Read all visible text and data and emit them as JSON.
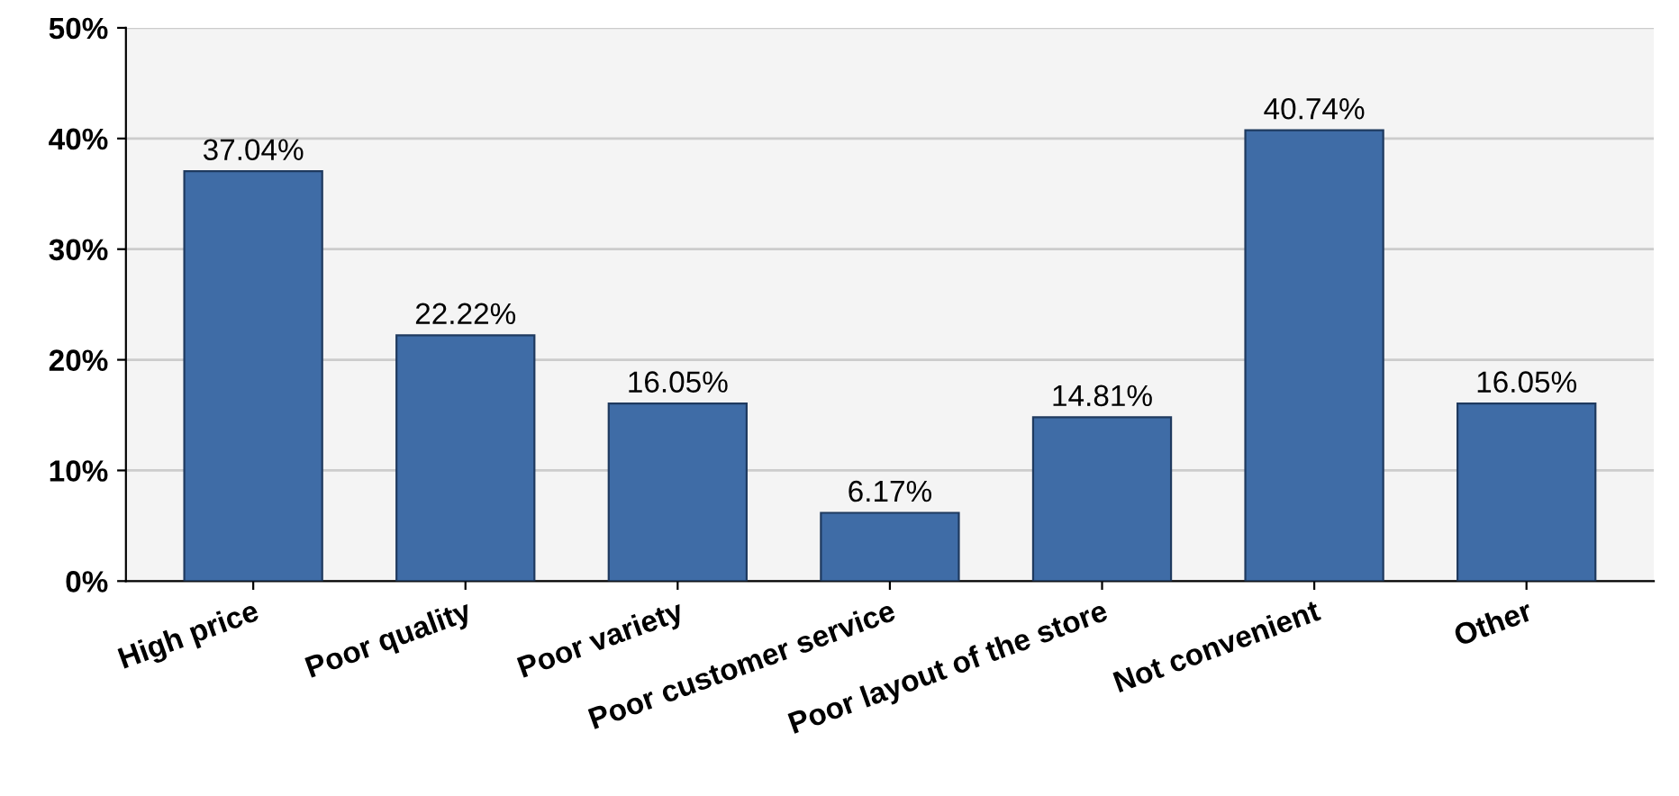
{
  "chart_data": {
    "type": "bar",
    "categories": [
      "High price",
      "Poor quality",
      "Poor variety",
      "Poor customer service",
      "Poor layout of the store",
      "Not convenient",
      "Other"
    ],
    "values": [
      37.04,
      22.22,
      16.05,
      6.17,
      14.81,
      40.74,
      16.05
    ],
    "value_labels": [
      "37.04%",
      "22.22%",
      "16.05%",
      "6.17%",
      "14.81%",
      "40.74%",
      "16.05%"
    ],
    "color": "#3f6ca6",
    "ylim": [
      0,
      50
    ],
    "yticks": [
      {
        "value": 0,
        "label": "0%"
      },
      {
        "value": 10,
        "label": "10%"
      },
      {
        "value": 20,
        "label": "20%"
      },
      {
        "value": 30,
        "label": "30%"
      },
      {
        "value": 40,
        "label": "40%"
      },
      {
        "value": 50,
        "label": "50%"
      }
    ],
    "grid": "y"
  }
}
